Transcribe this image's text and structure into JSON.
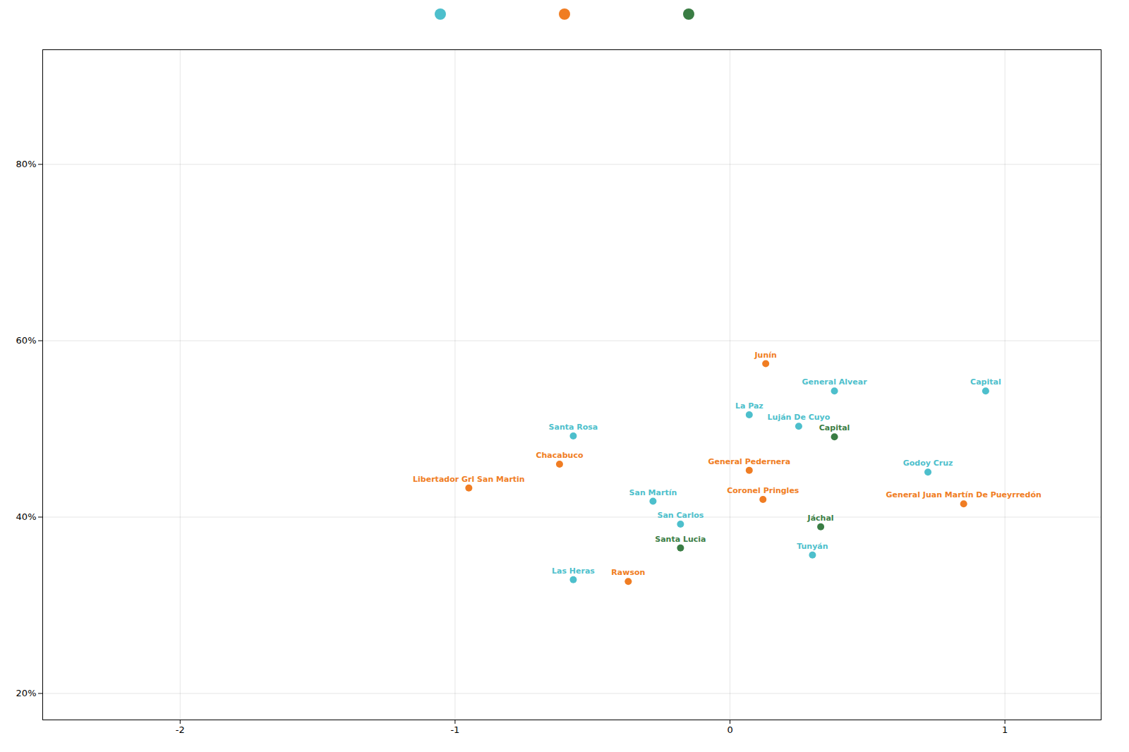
{
  "chart_data": {
    "type": "scatter",
    "xlim": [
      -2.5,
      1.35
    ],
    "ylim": [
      0.17,
      0.93
    ],
    "xticks": [
      -2,
      -1,
      0,
      1
    ],
    "yticks": [
      {
        "value": 0.2,
        "label": "20%"
      },
      {
        "value": 0.4,
        "label": "40%"
      },
      {
        "value": 0.6,
        "label": "60%"
      },
      {
        "value": 0.8,
        "label": "80%"
      }
    ],
    "grid": true,
    "legend": "top",
    "series": [
      {
        "color": "#4dbfcc",
        "x": [
          0.38,
          0.93,
          0.07,
          0.25,
          -0.57,
          0.72,
          -0.28,
          -0.18,
          0.3,
          -0.57
        ],
        "values": [
          0.543,
          0.543,
          0.516,
          0.503,
          0.492,
          0.451,
          0.418,
          0.392,
          0.357,
          0.329
        ],
        "labels": [
          "General Alvear",
          "Capital",
          "La Paz",
          "Luján De Cuyo",
          "Santa Rosa",
          "Godoy Cruz",
          "San Martín",
          "San Carlos",
          "Tunyán",
          "Las Heras"
        ]
      },
      {
        "color": "#f07d23",
        "x": [
          0.13,
          -0.62,
          0.07,
          -0.95,
          0.12,
          0.85,
          -0.37
        ],
        "values": [
          0.574,
          0.46,
          0.453,
          0.433,
          0.42,
          0.415,
          0.327
        ],
        "labels": [
          "Junín",
          "Chacabuco",
          "General Pedernera",
          "Libertador Grl San Martin",
          "Coronel Pringles",
          "General Juan Martín De Pueyrredón",
          "Rawson"
        ]
      },
      {
        "color": "#3a7d44",
        "x": [
          0.38,
          0.33,
          -0.18
        ],
        "values": [
          0.491,
          0.389,
          0.365
        ],
        "labels": [
          "Capital",
          "Jáchal",
          "Santa Lucia"
        ]
      }
    ]
  }
}
